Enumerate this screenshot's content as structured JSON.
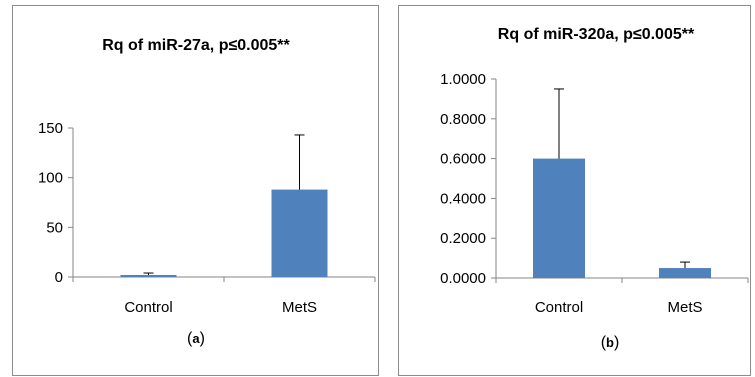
{
  "colors": {
    "bar": "#4f81bd",
    "axis": "#868686",
    "error": "#000000"
  },
  "chart_data": [
    {
      "type": "bar",
      "title": "Rq of miR-27a, p≤0.005**",
      "label": "a",
      "categories": [
        "Control",
        "MetS"
      ],
      "values": [
        2,
        88
      ],
      "errors": [
        2,
        55
      ],
      "ylim": [
        0,
        150
      ],
      "yticks": [
        "0",
        "50",
        "100",
        "150"
      ],
      "ytick_values": [
        0,
        50,
        100,
        150
      ],
      "xlabel": "",
      "ylabel": "",
      "grid": false
    },
    {
      "type": "bar",
      "title": "Rq of miR-320a, p≤0.005**",
      "label": "b",
      "categories": [
        "Control",
        "MetS"
      ],
      "values": [
        0.6,
        0.05
      ],
      "errors": [
        0.35,
        0.03
      ],
      "ylim": [
        0,
        1.0
      ],
      "yticks": [
        "0.0000",
        "0.2000",
        "0.4000",
        "0.6000",
        "0.8000",
        "1.0000"
      ],
      "ytick_values": [
        0,
        0.2,
        0.4,
        0.6,
        0.8,
        1.0
      ],
      "xlabel": "",
      "ylabel": "",
      "grid": false
    }
  ]
}
